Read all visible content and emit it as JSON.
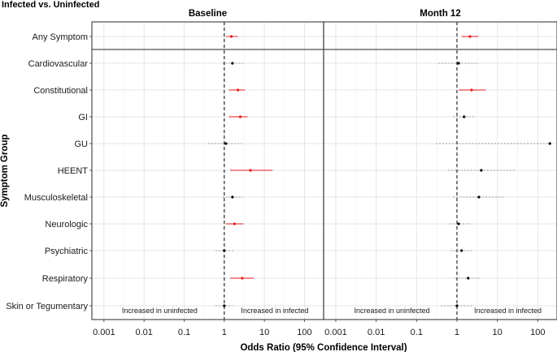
{
  "chart_data": {
    "type": "scatter",
    "title": "Infected vs. Uninfected",
    "xlabel": "Odds Ratio (95% Confidence Interval)",
    "ylabel": "Symptom Group",
    "x_scale": "log10",
    "xlim": [
      0.0005,
      300
    ],
    "x_ticks": [
      0.001,
      0.01,
      0.1,
      1,
      10,
      100
    ],
    "x_tick_labels": [
      "0.001",
      "0.01",
      "0.1",
      "1",
      "10",
      "100"
    ],
    "reference_line": 1,
    "annotations": {
      "left": "Increased in uninfected",
      "right": "Increased in infected"
    },
    "colors": {
      "significant": "#e31a1c",
      "not_significant": "#000000",
      "ci_not_significant": "#808080"
    },
    "groups": [
      "Any Symptom",
      "Cardiovascular",
      "Constitutional",
      "GI",
      "GU",
      "HEENT",
      "Musculoskeletal",
      "Neurologic",
      "Psychiatric",
      "Respiratory",
      "Skin or Tegumentary"
    ],
    "panels": [
      {
        "name": "Baseline",
        "points": [
          {
            "group": "Any Symptom",
            "or": 1.5,
            "lower": 1.1,
            "upper": 2.2,
            "significant": true
          },
          {
            "group": "Cardiovascular",
            "or": 1.6,
            "lower": 0.9,
            "upper": 3.0,
            "significant": false
          },
          {
            "group": "Constitutional",
            "or": 2.2,
            "lower": 1.3,
            "upper": 3.3,
            "significant": true
          },
          {
            "group": "GI",
            "or": 2.5,
            "lower": 1.3,
            "upper": 3.8,
            "significant": true
          },
          {
            "group": "GU",
            "or": 1.1,
            "lower": 0.4,
            "upper": 2.8,
            "significant": false
          },
          {
            "group": "HEENT",
            "or": 4.5,
            "lower": 1.4,
            "upper": 16,
            "significant": true
          },
          {
            "group": "Musculoskeletal",
            "or": 1.6,
            "lower": 0.9,
            "upper": 2.9,
            "significant": false
          },
          {
            "group": "Neurologic",
            "or": 1.8,
            "lower": 1.1,
            "upper": 3.0,
            "significant": true
          },
          {
            "group": "Psychiatric",
            "or": 1.0,
            "lower": 0.6,
            "upper": 1.8,
            "significant": false
          },
          {
            "group": "Respiratory",
            "or": 2.8,
            "lower": 1.4,
            "upper": 5.5,
            "significant": true
          },
          {
            "group": "Skin or Tegumentary",
            "or": 1.0,
            "lower": 0.6,
            "upper": 1.6,
            "significant": false
          }
        ]
      },
      {
        "name": "Month 12",
        "points": [
          {
            "group": "Any Symptom",
            "or": 2.1,
            "lower": 1.3,
            "upper": 3.4,
            "significant": true
          },
          {
            "group": "Cardiovascular",
            "or": 1.1,
            "lower": 0.35,
            "upper": 3.4,
            "significant": false
          },
          {
            "group": "Constitutional",
            "or": 2.3,
            "lower": 1.1,
            "upper": 5.2,
            "significant": true
          },
          {
            "group": "GI",
            "or": 1.5,
            "lower": 0.8,
            "upper": 2.8,
            "significant": false
          },
          {
            "group": "GU",
            "or": 200,
            "lower": 0.3,
            "upper": 200,
            "significant": false
          },
          {
            "group": "HEENT",
            "or": 4.0,
            "lower": 0.6,
            "upper": 27,
            "significant": false
          },
          {
            "group": "Musculoskeletal",
            "or": 3.5,
            "lower": 0.8,
            "upper": 15,
            "significant": false
          },
          {
            "group": "Neurologic",
            "or": 1.1,
            "lower": 0.65,
            "upper": 2.1,
            "significant": false
          },
          {
            "group": "Psychiatric",
            "or": 1.3,
            "lower": 0.7,
            "upper": 2.5,
            "significant": false
          },
          {
            "group": "Respiratory",
            "or": 1.9,
            "lower": 0.9,
            "upper": 4.0,
            "significant": false
          },
          {
            "group": "Skin or Tegumentary",
            "or": 1.0,
            "lower": 0.4,
            "upper": 2.4,
            "significant": false
          }
        ]
      }
    ]
  }
}
